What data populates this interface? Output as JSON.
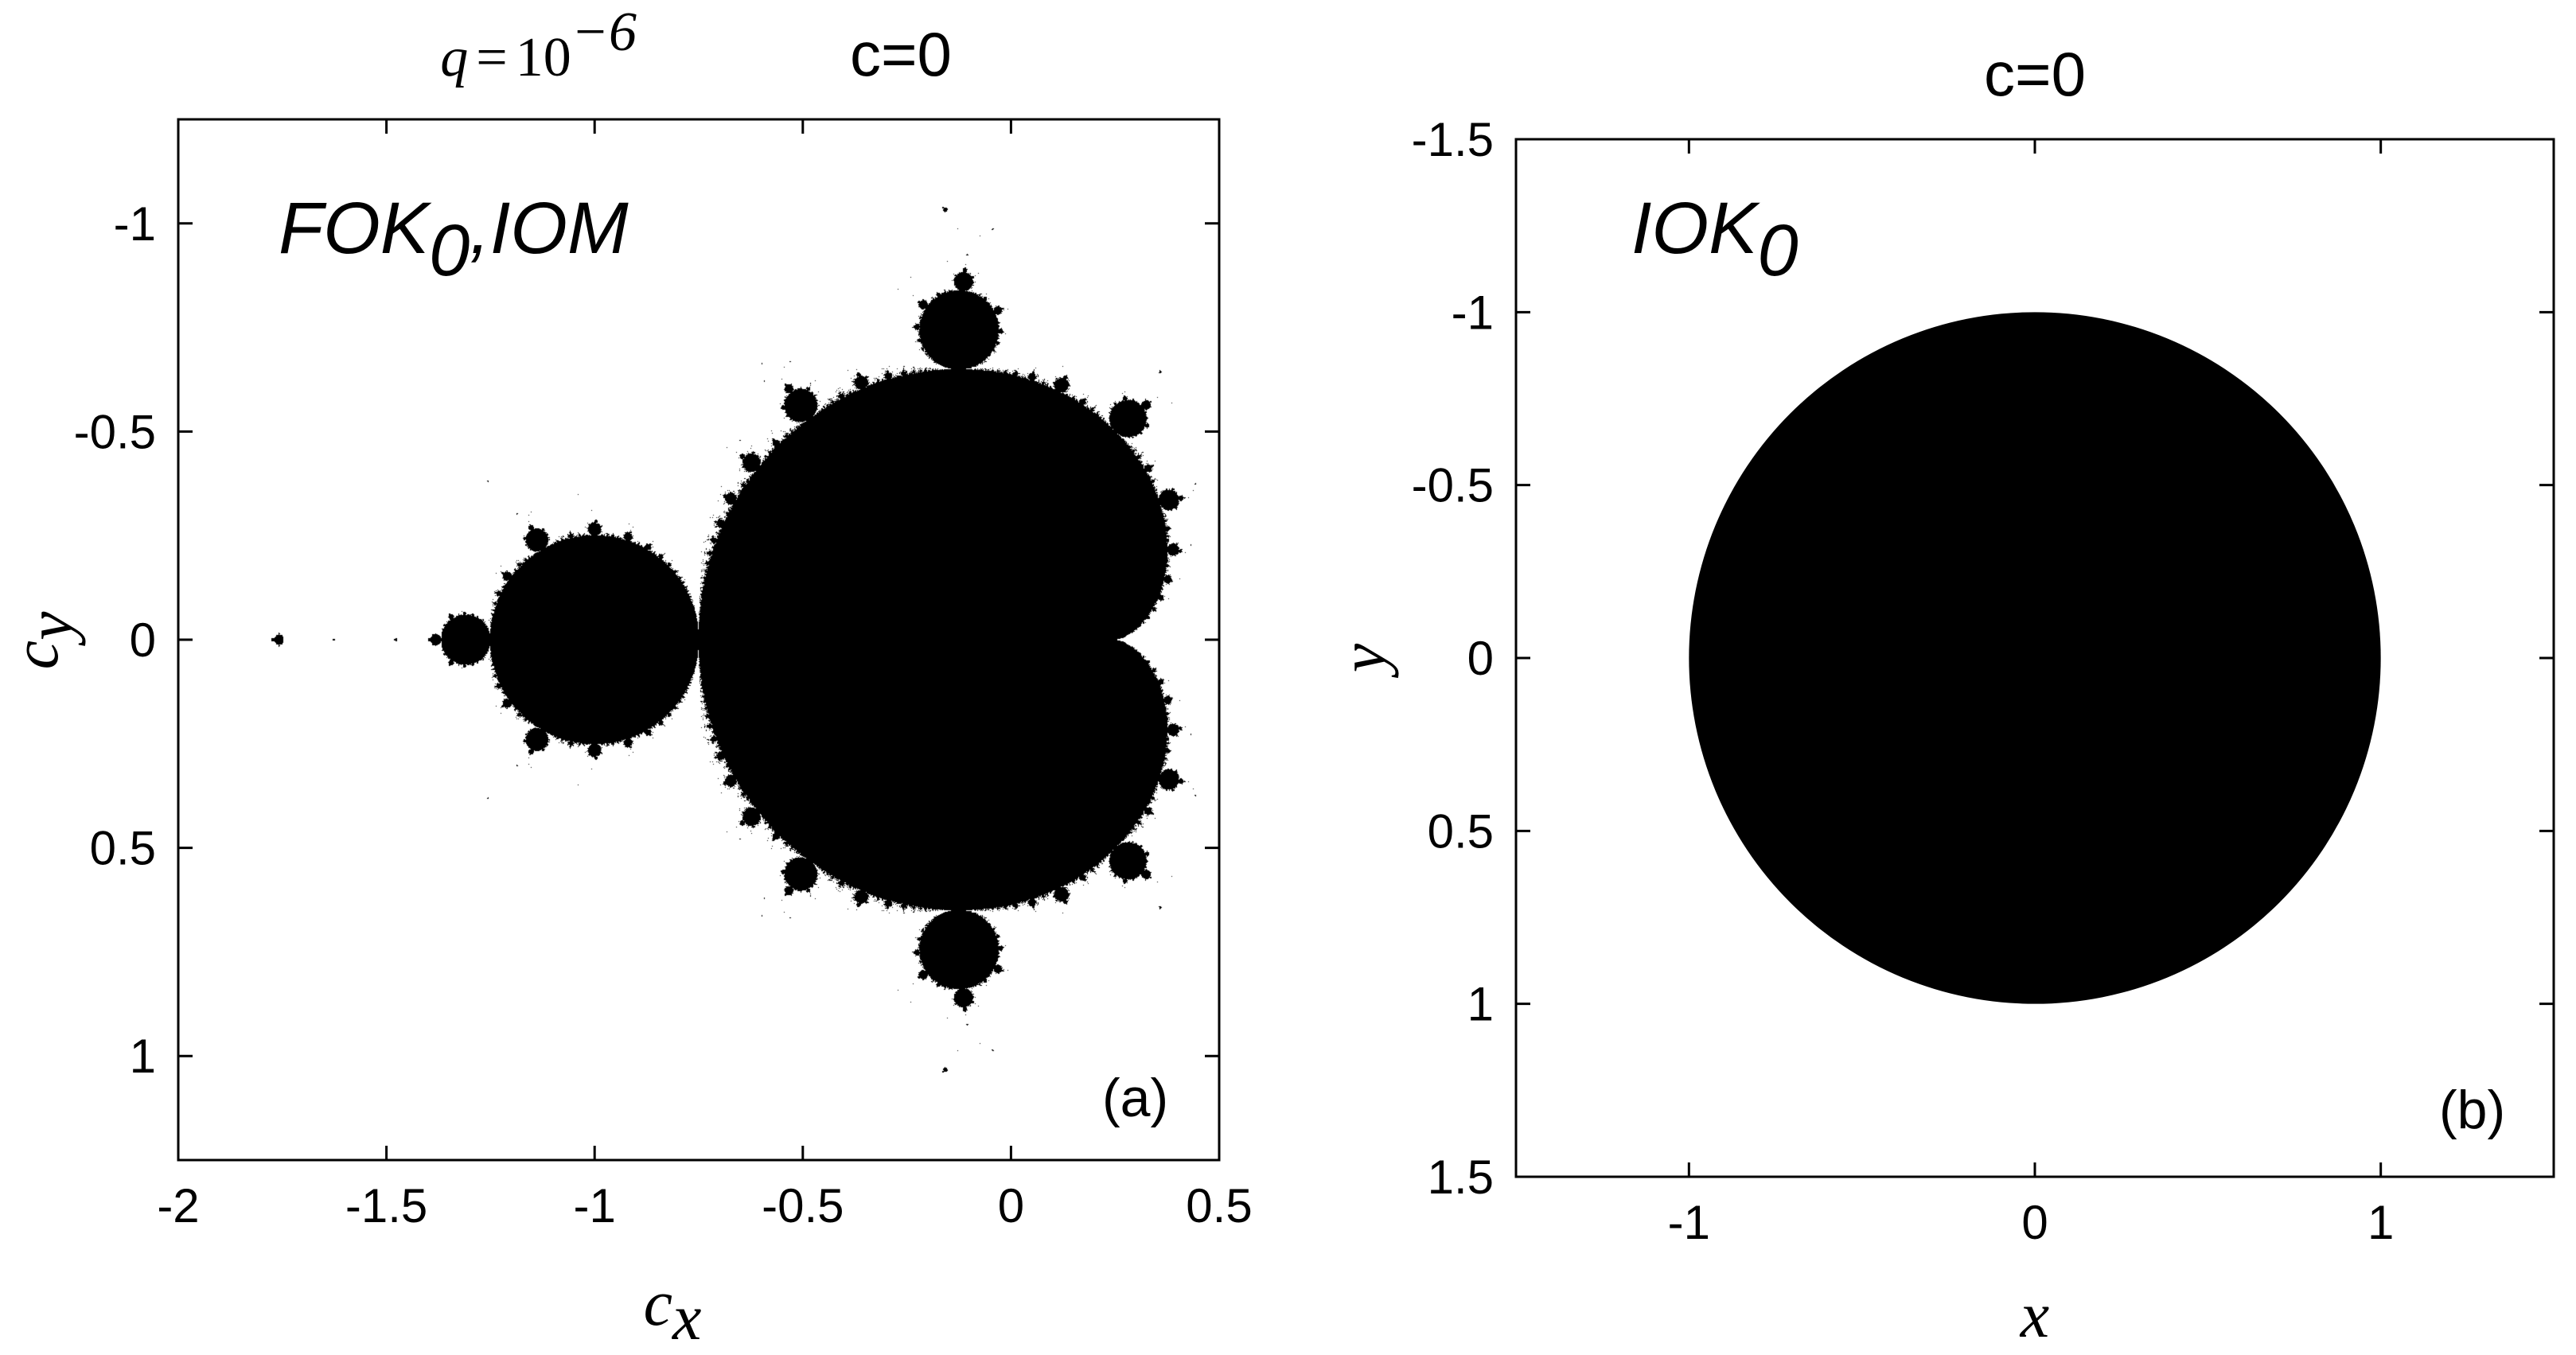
{
  "chart_data": [
    {
      "type": "heatmap",
      "panel_label": "(a)",
      "title_math": {
        "q": "q",
        "eq": "=",
        "base": "10",
        "exp": "−6"
      },
      "title_text": "c=0",
      "annotation": {
        "main": "FOK",
        "sub": "0",
        "rest": ",IOM"
      },
      "xlabel": {
        "base": "c",
        "sub": "x"
      },
      "ylabel": {
        "base": "c",
        "sub": "y"
      },
      "xlim": [
        -2,
        0.5
      ],
      "ylim": [
        1.25,
        -1.25
      ],
      "y_inverted": true,
      "xticks": [
        -2,
        -1.5,
        -1,
        -0.5,
        0,
        0.5
      ],
      "xtick_labels": [
        "-2",
        "-1.5",
        "-1",
        "-0.5",
        "0",
        "0.5"
      ],
      "yticks": [
        -1,
        -0.5,
        0,
        0.5,
        1
      ],
      "ytick_labels": [
        "-1",
        "-0.5",
        "0",
        "0.5",
        "1"
      ],
      "set": "Mandelbrot set (black region)",
      "fill_color": "#000000",
      "background_color": "#ffffff"
    },
    {
      "type": "heatmap",
      "panel_label": "(b)",
      "title_text": "c=0",
      "annotation": {
        "main": "IOK",
        "sub": "0",
        "rest": ""
      },
      "xlabel": {
        "base": "x",
        "sub": ""
      },
      "ylabel": {
        "base": "y",
        "sub": ""
      },
      "xlim": [
        -1.5,
        1.5
      ],
      "ylim": [
        1.5,
        -1.5
      ],
      "y_inverted": true,
      "xticks": [
        -1,
        0,
        1
      ],
      "xtick_labels": [
        "-1",
        "0",
        "1"
      ],
      "yticks": [
        -1.5,
        -1,
        -0.5,
        0,
        0.5,
        1,
        1.5
      ],
      "ytick_labels": [
        "-1.5",
        "-1",
        "-0.5",
        "0",
        "0.5",
        "1",
        "1.5"
      ],
      "set": "filled unit disk",
      "disk": {
        "center": [
          0,
          0
        ],
        "radius": 1
      },
      "fill_color": "#000000",
      "background_color": "#ffffff"
    }
  ]
}
